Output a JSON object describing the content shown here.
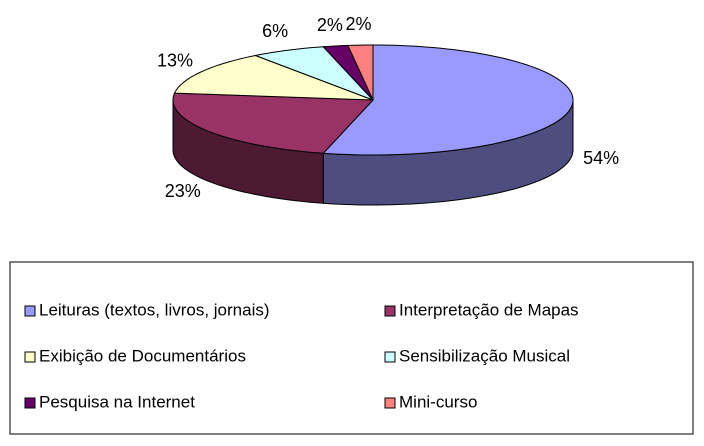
{
  "chart_data": {
    "type": "pie3d",
    "categories": [
      "Leituras (textos, livros, jornais)",
      "Interpretação de Mapas",
      "Exibição de Documentários",
      "Sensibilização Musical",
      "Pesquisa na Internet",
      "Mini-curso"
    ],
    "values": [
      54,
      23,
      13,
      6,
      2,
      2
    ],
    "value_labels": [
      "54%",
      "23%",
      "13%",
      "6%",
      "2%",
      "2%"
    ],
    "colors": [
      "#9999ff",
      "#993366",
      "#ffffcc",
      "#ccffff",
      "#660066",
      "#ff8080"
    ],
    "legend": "bottom"
  }
}
